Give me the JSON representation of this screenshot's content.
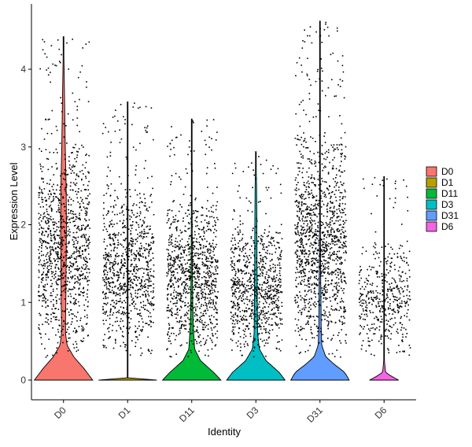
{
  "chart_data": {
    "type": "violin",
    "xlabel": "Identity",
    "ylabel": "Expression Level",
    "ylim": [
      -0.25,
      4.7
    ],
    "yticks": [
      0,
      1,
      2,
      3,
      4
    ],
    "grid": false,
    "legend_position": "right",
    "series": [
      {
        "name": "D0",
        "color": "#F8766D",
        "max": 4.42,
        "n_points": 1100,
        "density": [
          [
            0,
            1.0
          ],
          [
            0.15,
            0.7
          ],
          [
            0.3,
            0.35
          ],
          [
            0.45,
            0.12
          ],
          [
            0.6,
            0.07
          ],
          [
            0.8,
            0.07
          ],
          [
            1.0,
            0.08
          ],
          [
            1.5,
            0.09
          ],
          [
            2.0,
            0.1
          ],
          [
            2.5,
            0.09
          ],
          [
            3.0,
            0.06
          ],
          [
            3.5,
            0.04
          ],
          [
            4.0,
            0.02
          ],
          [
            4.42,
            0.0
          ]
        ]
      },
      {
        "name": "D1",
        "color": "#B79F00",
        "max": 3.58,
        "n_points": 900,
        "density": [
          [
            0,
            1.0
          ],
          [
            0.01,
            0.0
          ],
          [
            1.0,
            0.0
          ],
          [
            3.58,
            0.0
          ]
        ]
      },
      {
        "name": "D11",
        "color": "#00BA38",
        "max": 3.36,
        "n_points": 1000,
        "density": [
          [
            0,
            1.0
          ],
          [
            0.1,
            0.75
          ],
          [
            0.25,
            0.3
          ],
          [
            0.4,
            0.1
          ],
          [
            0.7,
            0.05
          ],
          [
            1.0,
            0.035
          ],
          [
            1.5,
            0.02
          ],
          [
            2.0,
            0.015
          ],
          [
            2.5,
            0.01
          ],
          [
            3.0,
            0.005
          ],
          [
            3.36,
            0.0
          ]
        ]
      },
      {
        "name": "D3",
        "color": "#00BFC4",
        "max": 2.94,
        "n_points": 850,
        "density": [
          [
            0,
            1.0
          ],
          [
            0.1,
            0.8
          ],
          [
            0.25,
            0.35
          ],
          [
            0.4,
            0.12
          ],
          [
            0.6,
            0.06
          ],
          [
            1.0,
            0.05
          ],
          [
            1.5,
            0.04
          ],
          [
            2.0,
            0.035
          ],
          [
            2.5,
            0.025
          ],
          [
            2.7,
            0.015
          ],
          [
            2.94,
            0.0
          ]
        ]
      },
      {
        "name": "D31",
        "color": "#619CFF",
        "max": 4.62,
        "n_points": 1300,
        "density": [
          [
            0,
            1.0
          ],
          [
            0.1,
            0.85
          ],
          [
            0.2,
            0.5
          ],
          [
            0.3,
            0.2
          ],
          [
            0.45,
            0.06
          ],
          [
            0.7,
            0.04
          ],
          [
            1.0,
            0.035
          ],
          [
            1.5,
            0.02
          ],
          [
            2.0,
            0.015
          ],
          [
            3.0,
            0.008
          ],
          [
            4.0,
            0.003
          ],
          [
            4.62,
            0.0
          ]
        ]
      },
      {
        "name": "D6",
        "color": "#F564E3",
        "max": 2.62,
        "n_points": 450,
        "density": [
          [
            0,
            0.5
          ],
          [
            0.05,
            0.25
          ],
          [
            0.1,
            0.05
          ],
          [
            0.3,
            0.0
          ],
          [
            2.62,
            0.0
          ]
        ]
      }
    ]
  }
}
